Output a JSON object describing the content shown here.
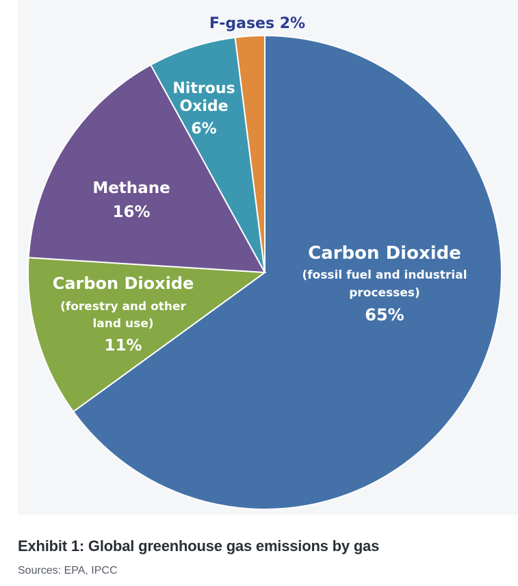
{
  "caption": {
    "title": "Exhibit 1: Global greenhouse gas emissions by gas",
    "sources": "Sources: EPA, IPCC"
  },
  "chart_data": {
    "type": "pie",
    "title": "",
    "slices": [
      {
        "name": "Carbon Dioxide",
        "detail_lines": [
          "(fossil fuel and industrial",
          "processes)"
        ],
        "value": 65,
        "value_label": "65%",
        "color": "#4472a8"
      },
      {
        "name": "Carbon Dioxide",
        "detail_lines": [
          "(forestry and other",
          "land use)"
        ],
        "value": 11,
        "value_label": "11%",
        "color": "#86a845"
      },
      {
        "name": "Methane",
        "detail_lines": [],
        "value": 16,
        "value_label": "16%",
        "color": "#6d5591"
      },
      {
        "name_lines": [
          "Nitrous",
          "Oxide"
        ],
        "detail_lines": [],
        "value": 6,
        "value_label": "6%",
        "color": "#3c98b0"
      },
      {
        "name": "F-gases",
        "detail_lines": [],
        "value": 2,
        "value_label": "F-gases 2%",
        "color": "#e08a3c"
      }
    ]
  }
}
